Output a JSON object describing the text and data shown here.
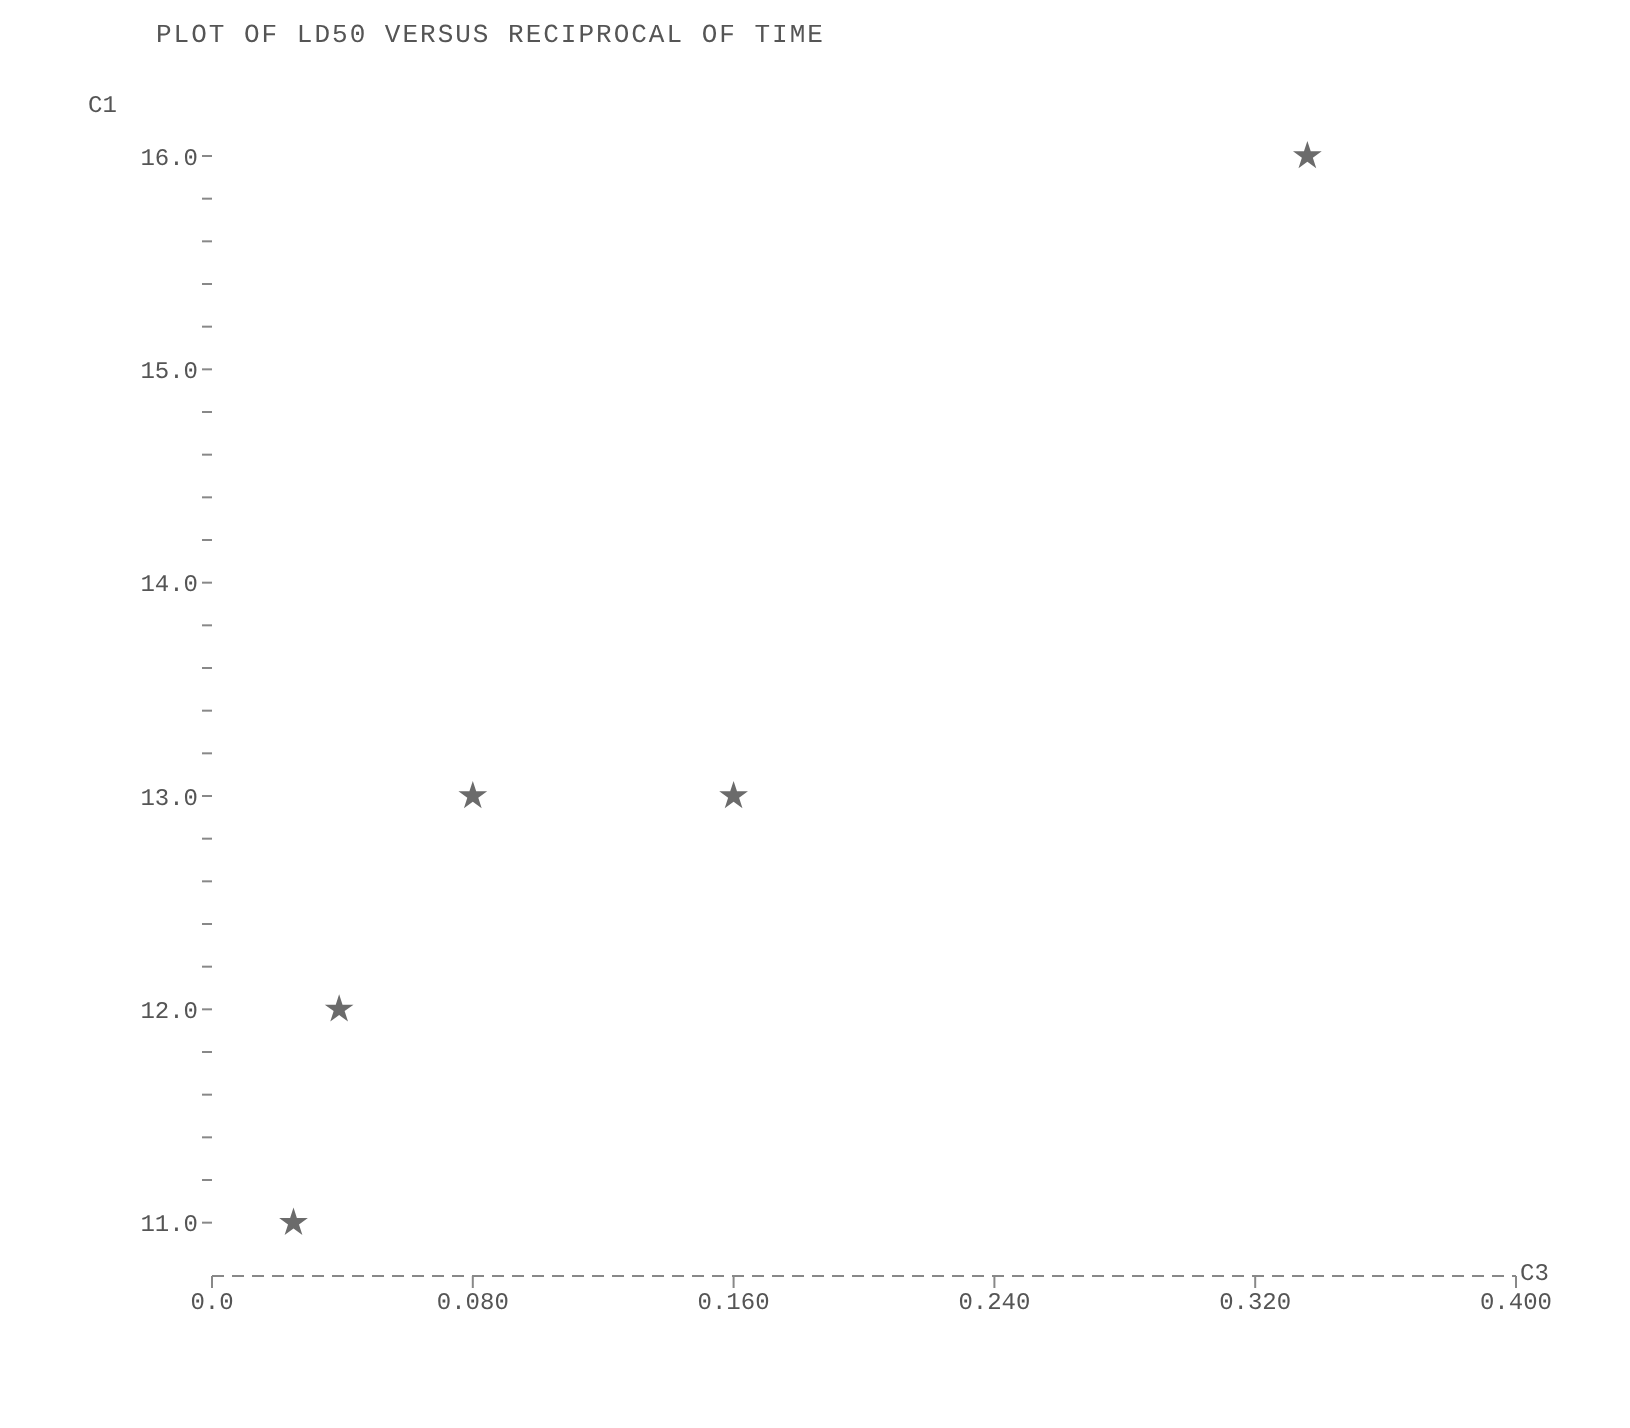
{
  "chart_data": {
    "type": "scatter",
    "title": "PLOT OF LD50 VERSUS RECIPROCAL OF TIME",
    "xlabel": "C3",
    "ylabel": "C1",
    "x": [
      0.025,
      0.039,
      0.08,
      0.16,
      0.336
    ],
    "series": [
      {
        "color": "#6b6b6b",
        "values": [
          11.0,
          12.0,
          13.0,
          13.0,
          16.0
        ]
      }
    ],
    "xlim": [
      0,
      0.4
    ],
    "xticks": [
      {
        "value": 0,
        "label": "0.0"
      },
      {
        "value": 0.08,
        "label": "0.080"
      },
      {
        "value": 0.16,
        "label": "0.160"
      },
      {
        "value": 0.24,
        "label": "0.240"
      },
      {
        "value": 0.32,
        "label": "0.320"
      },
      {
        "value": 0.4,
        "label": "0.400"
      }
    ],
    "ylim": [
      10.75,
      16
    ],
    "yticks": [
      {
        "value": 11,
        "label": "11.0"
      },
      {
        "value": 11.2,
        "label": null
      },
      {
        "value": 11.4,
        "label": null
      },
      {
        "value": 11.6,
        "label": null
      },
      {
        "value": 11.8,
        "label": null
      },
      {
        "value": 12,
        "label": "12.0"
      },
      {
        "value": 12.2,
        "label": null
      },
      {
        "value": 12.4,
        "label": null
      },
      {
        "value": 12.6,
        "label": null
      },
      {
        "value": 12.8,
        "label": null
      },
      {
        "value": 13,
        "label": "13.0"
      },
      {
        "value": 13.2,
        "label": null
      },
      {
        "value": 13.4,
        "label": null
      },
      {
        "value": 13.6,
        "label": null
      },
      {
        "value": 13.8,
        "label": null
      },
      {
        "value": 14,
        "label": "14.0"
      },
      {
        "value": 14.2,
        "label": null
      },
      {
        "value": 14.4,
        "label": null
      },
      {
        "value": 14.6,
        "label": null
      },
      {
        "value": 14.8,
        "label": null
      },
      {
        "value": 15,
        "label": "15.0"
      },
      {
        "value": 15.2,
        "label": null
      },
      {
        "value": 15.4,
        "label": null
      },
      {
        "value": 15.6,
        "label": null
      },
      {
        "value": 15.8,
        "label": null
      },
      {
        "value": 16,
        "label": "16.0"
      }
    ],
    "grid": false,
    "marker": "star"
  }
}
